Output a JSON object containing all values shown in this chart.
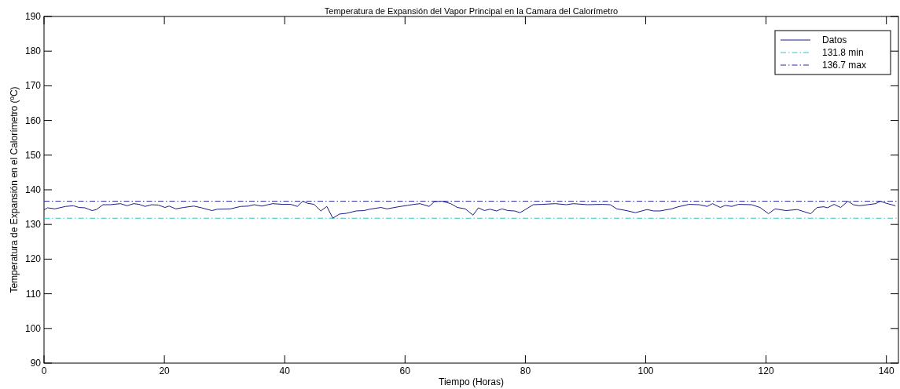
{
  "chart_data": {
    "type": "line",
    "title": "Temperatura de Expansión del Vapor Principal en la Camara del Calorímetro",
    "xlabel": "Tiempo (Horas)",
    "ylabel": "Temperatura de Expansión en el Calorímetro (ºC)",
    "xlim": [
      0,
      142
    ],
    "xticks": [
      0,
      20,
      40,
      60,
      80,
      100,
      120,
      140
    ],
    "ylim": [
      90,
      190
    ],
    "yticks": [
      90,
      100,
      110,
      120,
      130,
      140,
      150,
      160,
      170,
      180,
      190
    ],
    "grid": false,
    "legend": "top right",
    "line_style": "solid",
    "marker": "none",
    "series": [
      {
        "name": "Datos",
        "color": "#1c1c86",
        "x": [
          0,
          0.6,
          1.8,
          3.6,
          4.9,
          5.8,
          6.8,
          8.0,
          8.7,
          9.8,
          11.0,
          12.7,
          13.8,
          14.9,
          15.8,
          16.8,
          17.9,
          19.0,
          20.1,
          20.8,
          21.9,
          23.2,
          24.9,
          26.2,
          27.9,
          28.8,
          31.0,
          32.7,
          34.0,
          34.9,
          36.2,
          38.0,
          39.7,
          41.0,
          42.1,
          43.0,
          43.8,
          44.9,
          46.0,
          47.0,
          48.0,
          49.1,
          50.2,
          51.9,
          53.2,
          54.1,
          56.0,
          57.0,
          58.9,
          60.4,
          61.5,
          62.5,
          64.0,
          64.9,
          66.2,
          67.6,
          68.7,
          70.0,
          71.3,
          72.2,
          73.2,
          74.1,
          75.2,
          76.1,
          77.1,
          78.2,
          79.1,
          80.0,
          81.3,
          82.8,
          85.0,
          86.8,
          88.0,
          90.3,
          92.8,
          94.1,
          95.2,
          96.8,
          98.3,
          100.2,
          101.3,
          102.4,
          104.3,
          105.4,
          107.2,
          108.9,
          110.2,
          111.1,
          112.4,
          113.2,
          114.3,
          115.4,
          117.6,
          119.0,
          120.4,
          121.5,
          123.3,
          125.2,
          126.3,
          127.4,
          128.5,
          129.6,
          130.2,
          131.3,
          132.4,
          133.6,
          134.5,
          135.5,
          136.9,
          138.2,
          139.0,
          140.0,
          141.5
        ],
        "values": [
          134.2,
          134.8,
          134.5,
          135.2,
          135.4,
          134.9,
          134.8,
          134.0,
          134.3,
          135.7,
          135.7,
          136.0,
          135.4,
          136.0,
          135.8,
          135.2,
          135.7,
          135.6,
          134.9,
          135.3,
          134.5,
          134.9,
          135.3,
          134.8,
          134.0,
          134.4,
          134.5,
          135.2,
          135.3,
          135.7,
          135.3,
          136.0,
          135.8,
          135.8,
          135.2,
          136.7,
          136.1,
          135.8,
          133.9,
          135.2,
          131.8,
          133.0,
          133.2,
          133.9,
          134.0,
          134.4,
          134.9,
          134.5,
          135.1,
          135.5,
          135.8,
          136.0,
          135.2,
          136.6,
          136.7,
          136.0,
          134.9,
          134.5,
          132.7,
          134.8,
          134.0,
          134.4,
          133.9,
          134.5,
          134.0,
          133.9,
          133.4,
          134.3,
          135.7,
          135.8,
          136.0,
          135.7,
          136.0,
          135.7,
          135.8,
          135.7,
          134.5,
          134.0,
          133.4,
          134.3,
          133.9,
          133.9,
          134.5,
          135.1,
          135.8,
          135.7,
          135.2,
          136.0,
          134.9,
          135.5,
          135.2,
          135.8,
          135.7,
          134.9,
          133.1,
          134.5,
          134.0,
          134.3,
          133.7,
          133.1,
          134.9,
          135.1,
          134.8,
          135.8,
          134.9,
          136.7,
          135.7,
          135.4,
          135.7,
          136.0,
          136.7,
          136.1,
          135.4
        ]
      }
    ],
    "ref_lines": [
      {
        "axis": "y",
        "value": 131.8,
        "label": "131.8 min",
        "color": "#33c6c6",
        "line_style": "dashed"
      },
      {
        "axis": "y",
        "value": 136.7,
        "label": "136.7 max",
        "color": "#2a2aa0",
        "line_style": "dashed"
      }
    ]
  }
}
